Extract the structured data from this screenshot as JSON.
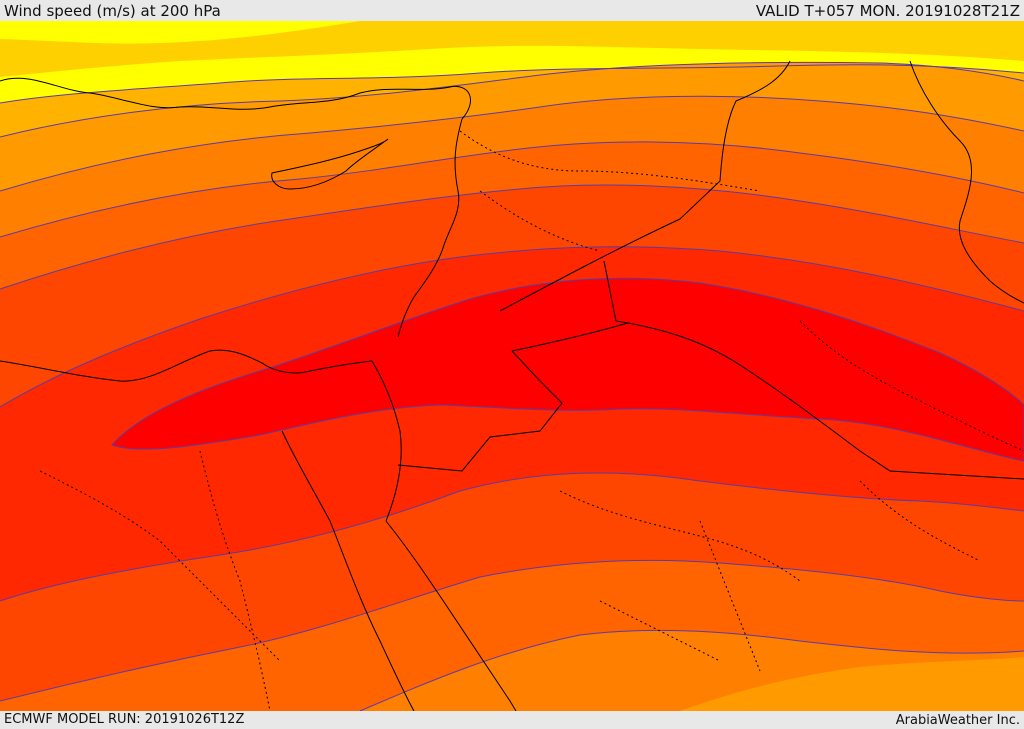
{
  "header": {
    "title": "Wind speed (m/s) at 200 hPa",
    "valid": "VALID T+057 MON. 20191028T21Z"
  },
  "footer": {
    "model_run": "ECMWF MODEL RUN: 20191026T12Z",
    "brand": "ArabiaWeather Inc."
  },
  "map": {
    "variable": "wind speed",
    "level_hpa": 200,
    "units": "m/s",
    "colors": {
      "band_1": "#ffff00",
      "band_2": "#ffd000",
      "band_3": "#ffb300",
      "band_4": "#ff9a00",
      "band_5": "#ff7f00",
      "band_6": "#ff6400",
      "band_7": "#ff4600",
      "band_8": "#ff2800",
      "band_9": "#ff0000",
      "contour": "#5c3aa6",
      "boundary": "#000000"
    }
  }
}
